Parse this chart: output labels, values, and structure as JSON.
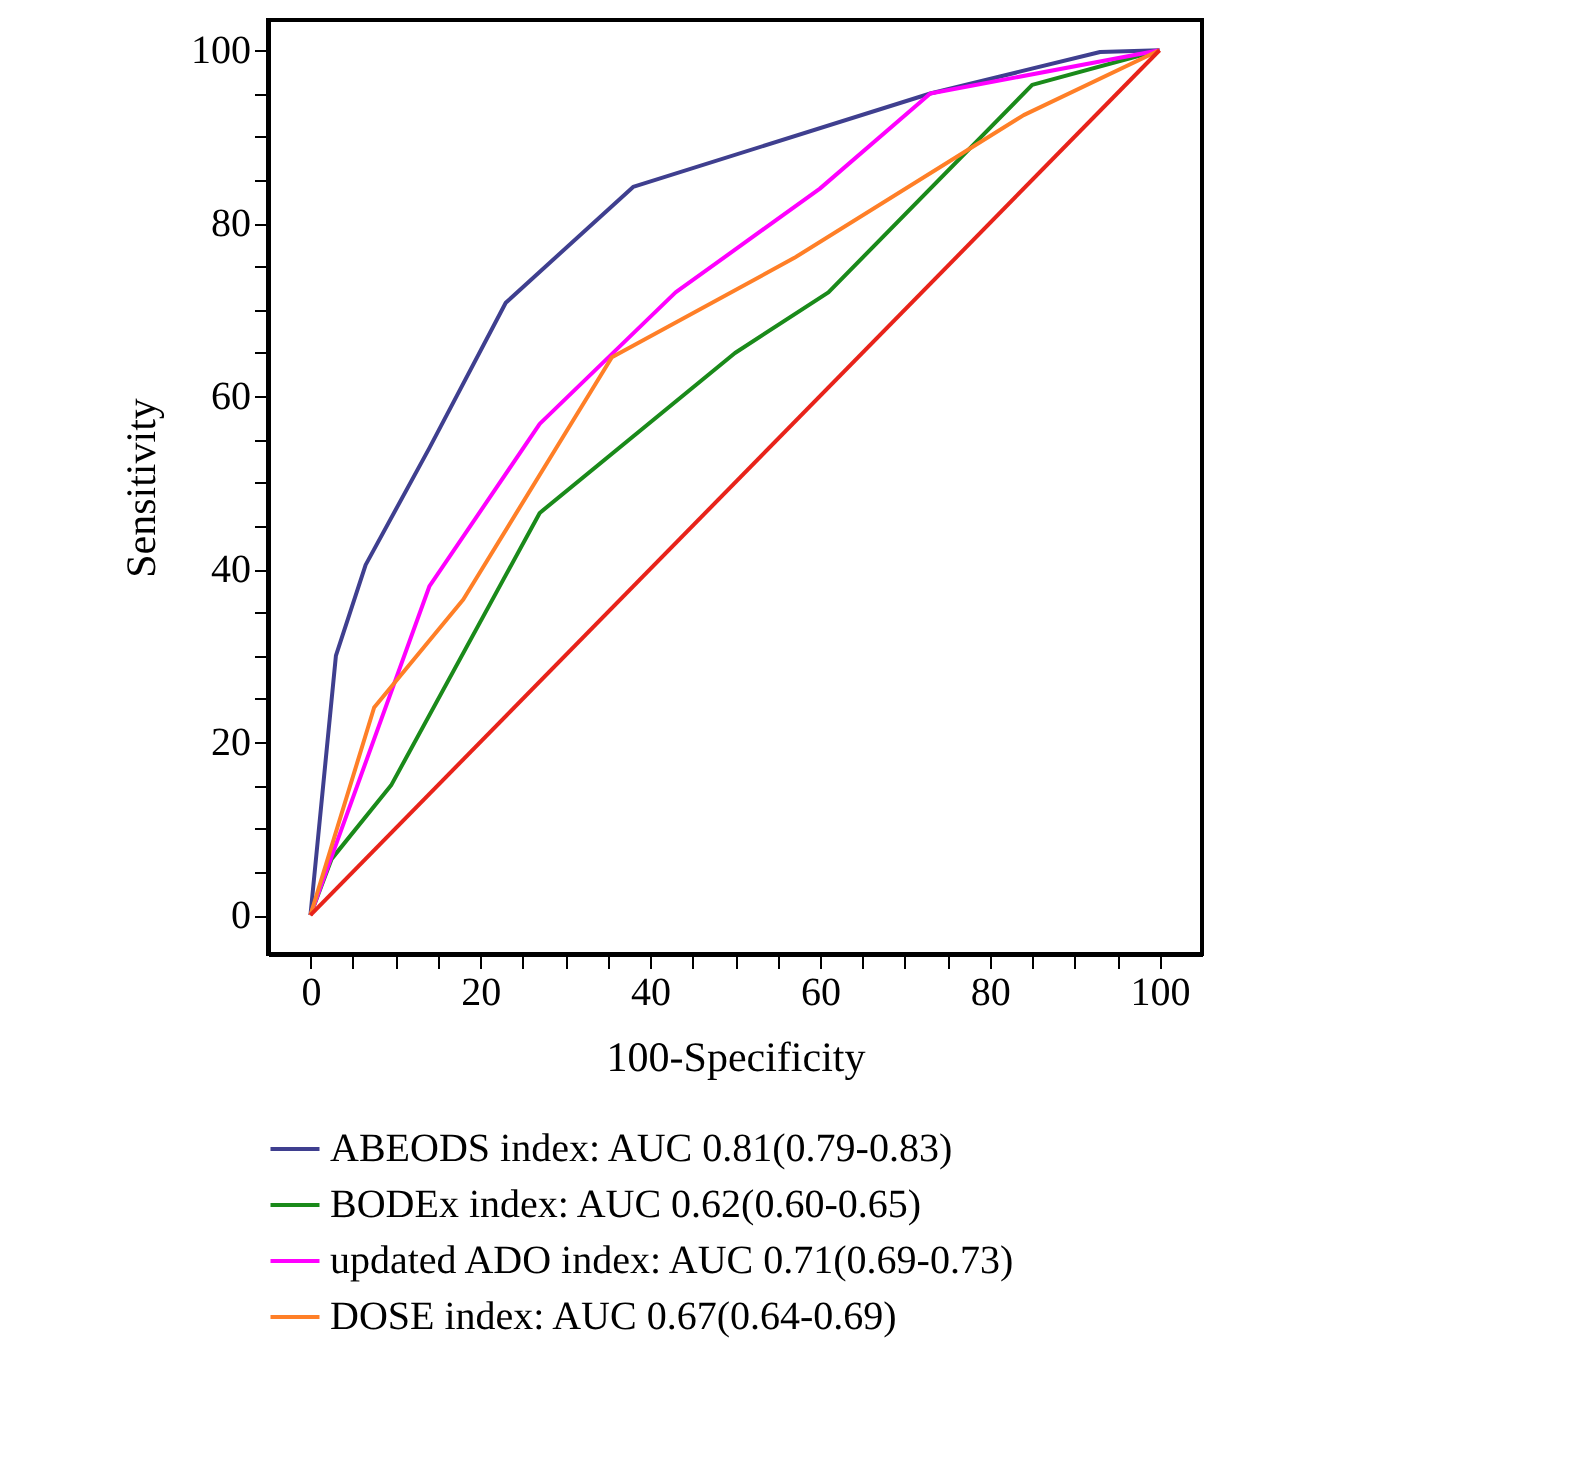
{
  "chart_data": {
    "type": "line",
    "xlabel": "100-Specificity",
    "ylabel": "Sensitivity",
    "xlim": [
      -5,
      105
    ],
    "ylim": [
      -4.5,
      103.5
    ],
    "xticks": [
      0,
      {
        "value": 5,
        "label": null
      },
      {
        "value": 10,
        "label": null
      },
      {
        "value": 15,
        "label": null
      },
      20,
      {
        "value": 25,
        "label": null
      },
      {
        "value": 30,
        "label": null
      },
      {
        "value": 35,
        "label": null
      },
      40,
      {
        "value": 45,
        "label": null
      },
      {
        "value": 50,
        "label": null
      },
      {
        "value": 55,
        "label": null
      },
      60,
      {
        "value": 65,
        "label": null
      },
      {
        "value": 70,
        "label": null
      },
      {
        "value": 75,
        "label": null
      },
      80,
      {
        "value": 85,
        "label": null
      },
      {
        "value": 90,
        "label": null
      },
      {
        "value": 95,
        "label": null
      },
      100
    ],
    "yticks": [
      0,
      {
        "value": 5,
        "label": null
      },
      {
        "value": 10,
        "label": null
      },
      {
        "value": 15,
        "label": null
      },
      20,
      {
        "value": 25,
        "label": null
      },
      {
        "value": 30,
        "label": null
      },
      {
        "value": 35,
        "label": null
      },
      40,
      {
        "value": 45,
        "label": null
      },
      {
        "value": 50,
        "label": null
      },
      {
        "value": 55,
        "label": null
      },
      60,
      {
        "value": 65,
        "label": null
      },
      {
        "value": 70,
        "label": null
      },
      {
        "value": 75,
        "label": null
      },
      80,
      {
        "value": 85,
        "label": null
      },
      {
        "value": 90,
        "label": null
      },
      {
        "value": 95,
        "label": null
      },
      100
    ],
    "grid": false,
    "legend": "bottom",
    "marker": "none",
    "line_style": "solid",
    "series": [
      {
        "name": "ABEODS index: AUC 0.81(0.79-0.83)",
        "color": "#3f3f8f",
        "x": [
          0,
          3,
          6.5,
          14,
          23,
          38,
          73,
          93,
          100
        ],
        "values": [
          0,
          30,
          40.5,
          54,
          70.8,
          84.2,
          95,
          99.8,
          100
        ]
      },
      {
        "name": "BODEx index: AUC 0.62(0.60-0.65)",
        "color": "#1a8a1a",
        "x": [
          0,
          2.5,
          9.5,
          27,
          50,
          61,
          85,
          100
        ],
        "values": [
          0,
          6.5,
          15,
          46.5,
          65,
          72,
          96,
          100
        ]
      },
      {
        "name": "updated ADO index: AUC 0.71(0.69-0.73)",
        "color": "#ff00ff",
        "x": [
          0,
          14,
          27,
          43,
          60,
          73,
          100
        ],
        "values": [
          0,
          38,
          56.8,
          72,
          84,
          95,
          100
        ]
      },
      {
        "name": "DOSE index: AUC 0.67(0.64-0.69)",
        "color": "#ff7f27",
        "x": [
          0,
          7.5,
          18,
          35.5,
          57,
          84,
          100
        ],
        "values": [
          0,
          24,
          36.5,
          64.5,
          76,
          92.5,
          100
        ]
      },
      {
        "color": "#e8231a",
        "x": [
          0,
          100
        ],
        "values": [
          0,
          100
        ]
      }
    ]
  }
}
